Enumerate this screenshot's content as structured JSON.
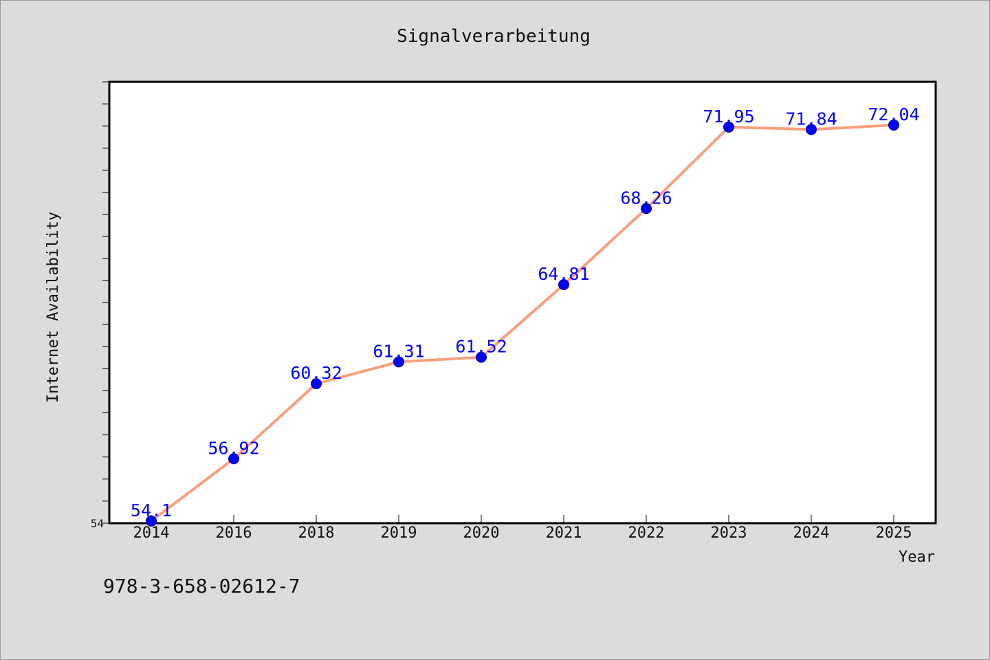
{
  "chart_data": {
    "type": "line",
    "title": "Signalverarbeitung",
    "xlabel": "Year",
    "ylabel": "Internet Availability",
    "categories": [
      "2014",
      "2016",
      "2018",
      "2019",
      "2020",
      "2021",
      "2022",
      "2023",
      "2024",
      "2025"
    ],
    "series": [
      {
        "values": [
          54.1,
          56.92,
          60.32,
          61.31,
          61.52,
          64.81,
          68.26,
          71.95,
          71.84,
          72.04
        ],
        "labels": [
          "54.1",
          "56.92",
          "60.32",
          "61.31",
          "61.52",
          "64.81",
          "68.26",
          "71.95",
          "71.84",
          "72.04"
        ],
        "line_color": "#fa9e7e",
        "marker_color": "#0000ff"
      }
    ],
    "ylim": [
      54,
      74
    ],
    "y_tick_labels": [
      {
        "value": 54,
        "label": "54"
      }
    ],
    "grid": false,
    "legend": "none"
  },
  "footer": {
    "text": "978-3-658-02612-7"
  },
  "colors": {
    "background": "#dcdcdc",
    "plot_background": "#ffffff",
    "axis": "#000000"
  }
}
